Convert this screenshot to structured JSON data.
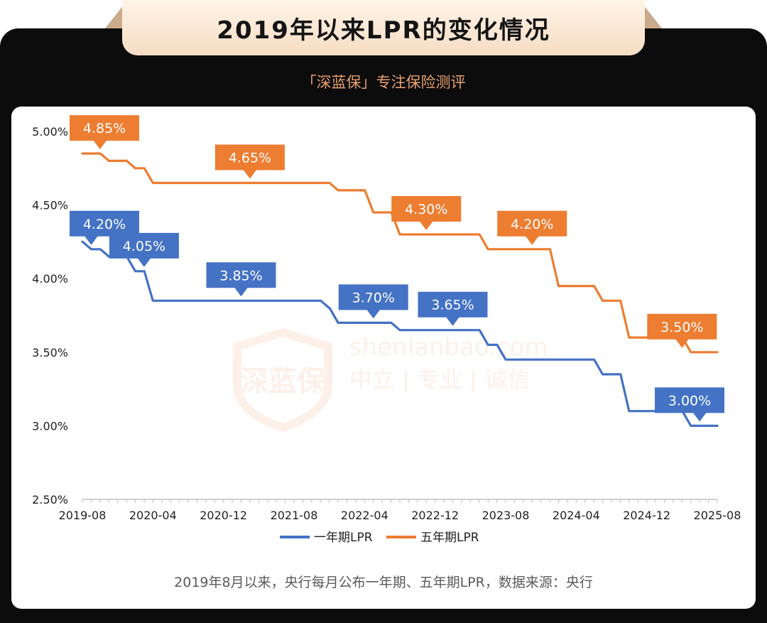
{
  "header": {
    "title": "2019年以来LPR的变化情况",
    "brand": "「深蓝保」专注保险测评"
  },
  "watermark": {
    "logo_text": "深蓝保",
    "domain": "shenlanbao.com",
    "slogan": "中立 | 专业 | 诚信"
  },
  "caption": "2019年8月以来，央行每月公布一年期、五年期LPR，数据来源：央行",
  "colors": {
    "one_year": "#4472c4",
    "five_year": "#ed7d31",
    "frame": "#0c0c0c",
    "accent_brand": "#e8a070"
  },
  "chart_data": {
    "type": "line",
    "title": "2019年以来LPR的变化情况",
    "xlabel": "",
    "ylabel": "",
    "ylim": [
      2.5,
      5.0
    ],
    "yticks": [
      "5.00%",
      "4.50%",
      "4.00%",
      "3.50%",
      "3.00%",
      "2.50%"
    ],
    "xticks": [
      "2019-08",
      "2020-04",
      "2020-12",
      "2021-08",
      "2022-04",
      "2022-12",
      "2023-08",
      "2024-04",
      "2024-12",
      "2025-08"
    ],
    "legend": "bottom",
    "series": [
      {
        "name": "一年期LPR",
        "color": "#4472c4",
        "changes": [
          {
            "date": "2019-08",
            "value": 4.25
          },
          {
            "date": "2019-09",
            "value": 4.2
          },
          {
            "date": "2019-11",
            "value": 4.15
          },
          {
            "date": "2020-02",
            "value": 4.05
          },
          {
            "date": "2020-04",
            "value": 3.85
          },
          {
            "date": "2021-12",
            "value": 3.8
          },
          {
            "date": "2022-01",
            "value": 3.7
          },
          {
            "date": "2022-08",
            "value": 3.65
          },
          {
            "date": "2023-06",
            "value": 3.55
          },
          {
            "date": "2023-08",
            "value": 3.45
          },
          {
            "date": "2024-07",
            "value": 3.35
          },
          {
            "date": "2024-10",
            "value": 3.1
          },
          {
            "date": "2025-05",
            "value": 3.0
          },
          {
            "date": "2025-08",
            "value": 3.0
          }
        ],
        "labels": [
          {
            "date": "2019-09",
            "value": 4.2,
            "text": "4.20%"
          },
          {
            "date": "2020-03",
            "value": 4.05,
            "text": "4.05%"
          },
          {
            "date": "2021-02",
            "value": 3.85,
            "text": "3.85%"
          },
          {
            "date": "2022-05",
            "value": 3.7,
            "text": "3.70%"
          },
          {
            "date": "2023-02",
            "value": 3.65,
            "text": "3.65%"
          },
          {
            "date": "2025-06",
            "value": 3.0,
            "text": "3.00%"
          }
        ]
      },
      {
        "name": "五年期LPR",
        "color": "#ed7d31",
        "changes": [
          {
            "date": "2019-08",
            "value": 4.85
          },
          {
            "date": "2019-11",
            "value": 4.8
          },
          {
            "date": "2020-02",
            "value": 4.75
          },
          {
            "date": "2020-04",
            "value": 4.65
          },
          {
            "date": "2022-01",
            "value": 4.6
          },
          {
            "date": "2022-05",
            "value": 4.45
          },
          {
            "date": "2022-08",
            "value": 4.3
          },
          {
            "date": "2023-06",
            "value": 4.2
          },
          {
            "date": "2024-02",
            "value": 3.95
          },
          {
            "date": "2024-07",
            "value": 3.85
          },
          {
            "date": "2024-10",
            "value": 3.6
          },
          {
            "date": "2025-05",
            "value": 3.5
          },
          {
            "date": "2025-08",
            "value": 3.5
          }
        ],
        "labels": [
          {
            "date": "2019-10",
            "value": 4.85,
            "text": "4.85%"
          },
          {
            "date": "2021-03",
            "value": 4.65,
            "text": "4.65%"
          },
          {
            "date": "2022-11",
            "value": 4.3,
            "text": "4.30%"
          },
          {
            "date": "2023-11",
            "value": 4.2,
            "text": "4.20%"
          },
          {
            "date": "2025-04",
            "value": 3.5,
            "text": "3.50%"
          }
        ]
      }
    ]
  }
}
